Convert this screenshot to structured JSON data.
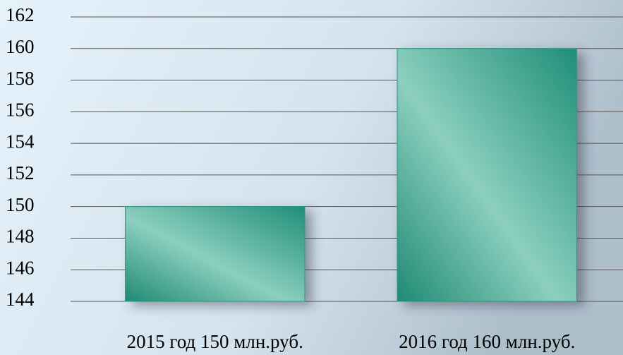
{
  "chart_data": {
    "type": "bar",
    "categories": [
      "2015 год 150 млн.руб.",
      "2016 год 160 млн.руб."
    ],
    "values": [
      150,
      160
    ],
    "color": "#2a9a84",
    "ylim": [
      144,
      162
    ],
    "yticks": [
      144,
      146,
      148,
      150,
      152,
      154,
      156,
      158,
      160,
      162
    ],
    "grid": true
  }
}
